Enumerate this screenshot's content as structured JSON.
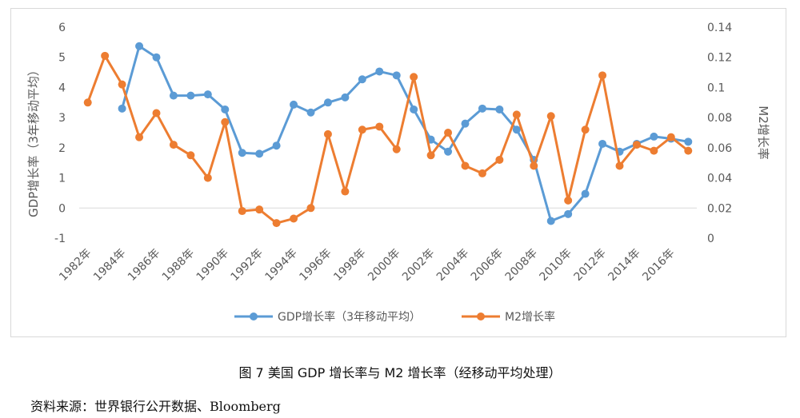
{
  "chart_data": {
    "type": "line",
    "x": [
      "1982年",
      "1983年",
      "1984年",
      "1985年",
      "1986年",
      "1987年",
      "1988年",
      "1989年",
      "1990年",
      "1991年",
      "1992年",
      "1993年",
      "1994年",
      "1995年",
      "1996年",
      "1997年",
      "1998年",
      "1999年",
      "2000年",
      "2001年",
      "2002年",
      "2003年",
      "2004年",
      "2005年",
      "2006年",
      "2007年",
      "2008年",
      "2009年",
      "2010年",
      "2011年",
      "2012年",
      "2013年",
      "2014年",
      "2015年",
      "2016年",
      "2017年"
    ],
    "x_tick_labels": [
      "1982年",
      "1984年",
      "1986年",
      "1988年",
      "1990年",
      "1992年",
      "1994年",
      "1996年",
      "1998年",
      "2000年",
      "2002年",
      "2004年",
      "2006年",
      "2008年",
      "2010年",
      "2012年",
      "2014年",
      "2016年"
    ],
    "ylabel": "GDP增长率（3年移动平均）",
    "ylabel_right": "M2增长率",
    "ylim": [
      -1,
      6
    ],
    "ylim_right": [
      0,
      0.14
    ],
    "yticks": [
      "-1",
      "0",
      "1",
      "2",
      "3",
      "4",
      "5",
      "6"
    ],
    "yticks_right": [
      "0",
      "0.02",
      "0.04",
      "0.06",
      "0.08",
      "0.1",
      "0.12",
      "0.14"
    ],
    "series": [
      {
        "name": "GDP增长率（3年移动平均）",
        "axis": "left",
        "color": "#5b9bd5",
        "values": [
          null,
          null,
          3.3,
          5.37,
          5.0,
          3.73,
          3.73,
          3.77,
          3.27,
          1.83,
          1.8,
          2.07,
          3.43,
          3.17,
          3.5,
          3.67,
          4.27,
          4.53,
          4.4,
          3.27,
          2.27,
          1.87,
          2.8,
          3.3,
          3.27,
          2.6,
          1.6,
          -0.43,
          -0.2,
          0.47,
          2.13,
          1.87,
          2.13,
          2.37,
          2.3,
          2.2
        ]
      },
      {
        "name": "M2增长率",
        "axis": "right",
        "color": "#ed7d31",
        "values": [
          0.09,
          0.121,
          0.102,
          0.067,
          0.083,
          0.062,
          0.055,
          0.04,
          0.077,
          0.018,
          0.019,
          0.01,
          0.013,
          0.02,
          0.069,
          0.031,
          0.072,
          0.074,
          0.059,
          0.107,
          0.055,
          0.07,
          0.048,
          0.043,
          0.052,
          0.082,
          0.048,
          0.081,
          0.025,
          0.072,
          0.108,
          0.048,
          0.062,
          0.058,
          0.067,
          0.058
        ]
      }
    ],
    "grid": false,
    "legend_position": "bottom"
  },
  "caption": "图 7 美国 GDP 增长率与 M2 增长率（经移动平均处理）",
  "source": "资料来源：世界银行公开数据、Bloomberg"
}
